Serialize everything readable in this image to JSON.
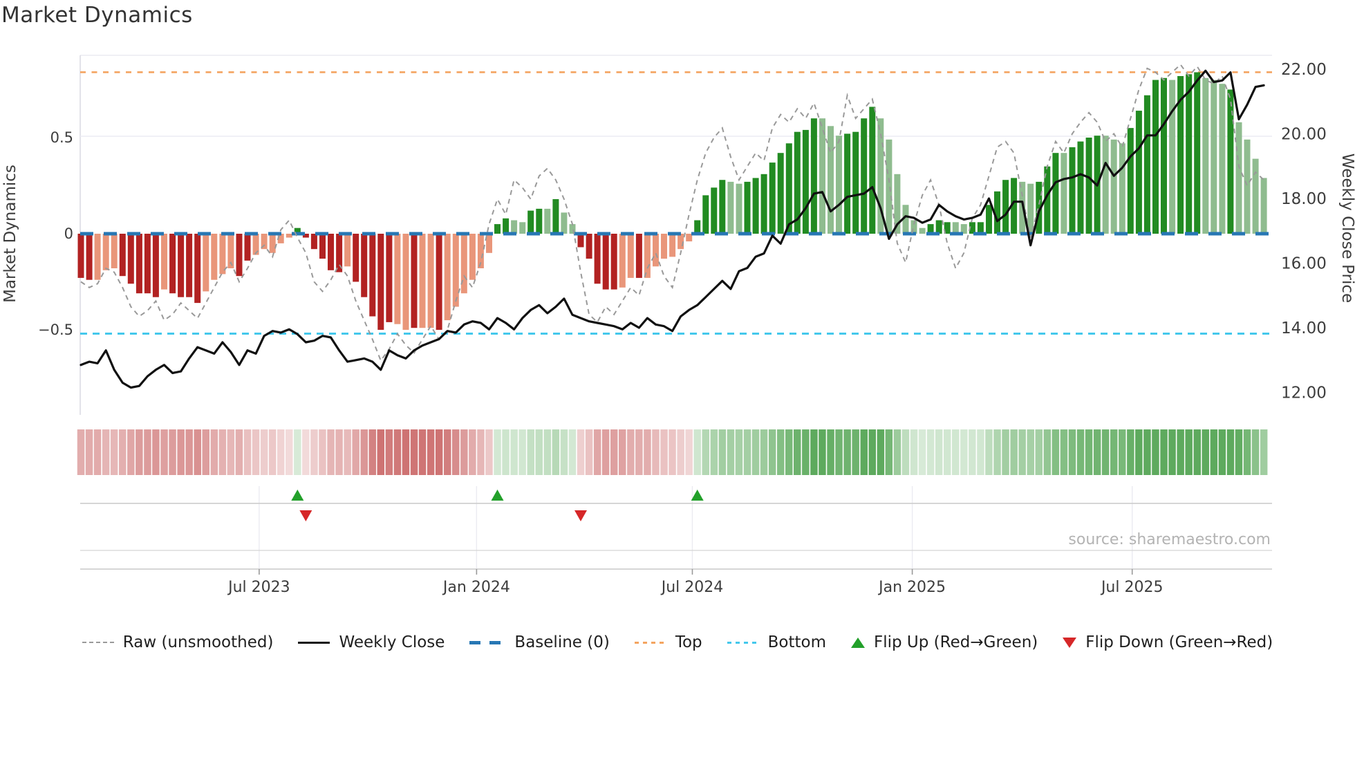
{
  "title": "Market Dynamics",
  "source": "source: sharemaestro.com",
  "axes": {
    "left_title": "Market Dynamics",
    "right_title": "Weekly Close Price",
    "left_ticks": [
      {
        "value": 0.5,
        "label": "0.5"
      },
      {
        "value": 0,
        "label": "0"
      },
      {
        "value": -0.5,
        "label": "−0.5"
      }
    ],
    "right_ticks": [
      {
        "value": 22,
        "label": "22.00"
      },
      {
        "value": 20,
        "label": "20.00"
      },
      {
        "value": 18,
        "label": "18.00"
      },
      {
        "value": 16,
        "label": "16.00"
      },
      {
        "value": 14,
        "label": "14.00"
      },
      {
        "value": 12,
        "label": "12.00"
      }
    ],
    "x_ticks": [
      {
        "label": "Jul 2023",
        "week": 21.4
      },
      {
        "label": "Jan 2024",
        "week": 47.5
      },
      {
        "label": "Jul 2024",
        "week": 73.4
      },
      {
        "label": "Jan 2025",
        "week": 99.8
      },
      {
        "label": "Jul 2025",
        "week": 126.2
      }
    ]
  },
  "legend": [
    {
      "label": "Raw (unsmoothed)"
    },
    {
      "label": "Weekly Close"
    },
    {
      "label": "Baseline (0)"
    },
    {
      "label": "Top"
    },
    {
      "label": "Bottom"
    },
    {
      "label": "Flip Up (Red→Green)"
    },
    {
      "label": "Flip Down (Green→Red)"
    }
  ],
  "colors": {
    "bar_dark_red": "#B22222",
    "bar_light_red": "#E9967A",
    "bar_dark_green": "#228B22",
    "bar_light_green": "#8FBC8F",
    "baseline": "#2777b4",
    "top_line": "#F4A460",
    "bottom_line": "#44C8EC",
    "raw_line": "#999999",
    "close_line": "#111111",
    "flip_up": "#22A02A",
    "flip_down": "#D62728",
    "grid": "#ECECF4",
    "axis_text": "#3D3D3D",
    "panel_line": "#C9C9C9"
  },
  "chart_data": {
    "type": "bar",
    "subtype": "weekly oscillator bars + dual-axis lines + heatmap strip + flip markers",
    "weeks": 143,
    "title": "Market Dynamics",
    "ylabel_left": "Market Dynamics",
    "ylabel_right": "Weekly Close Price",
    "ylim_left": [
      -0.94,
      0.93
    ],
    "ylim_right": [
      11.3,
      22.4
    ],
    "baseline": 0,
    "top_threshold": 0.84,
    "bottom_threshold": -0.52,
    "grid": "horizontal, light",
    "legend_position": "bottom center",
    "series": [
      {
        "name": "Oscillator (bars, left axis)",
        "type": "bar",
        "values": [
          -0.23,
          -0.24,
          -0.24,
          -0.19,
          -0.18,
          -0.22,
          -0.26,
          -0.31,
          -0.31,
          -0.33,
          -0.29,
          -0.31,
          -0.33,
          -0.33,
          -0.36,
          -0.3,
          -0.24,
          -0.21,
          -0.18,
          -0.22,
          -0.14,
          -0.11,
          -0.08,
          -0.1,
          -0.05,
          -0.02,
          0.03,
          -0.02,
          -0.08,
          -0.13,
          -0.19,
          -0.2,
          -0.17,
          -0.25,
          -0.33,
          -0.43,
          -0.5,
          -0.46,
          -0.47,
          -0.5,
          -0.49,
          -0.49,
          -0.49,
          -0.5,
          -0.45,
          -0.38,
          -0.31,
          -0.24,
          -0.18,
          -0.1,
          0.05,
          0.08,
          0.07,
          0.06,
          0.12,
          0.13,
          0.13,
          0.18,
          0.11,
          0.05,
          -0.07,
          -0.13,
          -0.26,
          -0.29,
          -0.29,
          -0.28,
          -0.23,
          -0.23,
          -0.23,
          -0.17,
          -0.13,
          -0.12,
          -0.08,
          -0.04,
          0.07,
          0.2,
          0.24,
          0.28,
          0.27,
          0.26,
          0.27,
          0.29,
          0.31,
          0.37,
          0.42,
          0.47,
          0.53,
          0.54,
          0.6,
          0.6,
          0.56,
          0.51,
          0.52,
          0.53,
          0.6,
          0.66,
          0.6,
          0.49,
          0.31,
          0.15,
          0.07,
          0.03,
          0.05,
          0.07,
          0.06,
          0.06,
          0.05,
          0.06,
          0.06,
          0.15,
          0.22,
          0.28,
          0.29,
          0.27,
          0.26,
          0.27,
          0.35,
          0.42,
          0.42,
          0.45,
          0.48,
          0.5,
          0.51,
          0.51,
          0.49,
          0.47,
          0.55,
          0.64,
          0.72,
          0.8,
          0.81,
          0.8,
          0.82,
          0.83,
          0.84,
          0.81,
          0.8,
          0.78,
          0.75,
          0.58,
          0.49,
          0.39,
          0.29
        ],
        "shade_pattern": "ddllldddddlddddllllddlllllddddddldddddlldlldllllllddllddldlldddddlldllllllddddlldddddddddlllddddlllllldddllddddddlldddlddddllldddddldddllldllll",
        "shade_legend": {
          "d": "dark (saturated)",
          "l": "light (muted)"
        }
      },
      {
        "name": "Raw (unsmoothed)",
        "type": "line",
        "axis": "left",
        "style": "gray dashed",
        "values": [
          -0.25,
          -0.28,
          -0.26,
          -0.18,
          -0.2,
          -0.28,
          -0.38,
          -0.43,
          -0.4,
          -0.35,
          -0.45,
          -0.42,
          -0.36,
          -0.4,
          -0.44,
          -0.36,
          -0.28,
          -0.2,
          -0.15,
          -0.25,
          -0.18,
          -0.1,
          -0.06,
          -0.12,
          0.02,
          0.07,
          -0.02,
          -0.1,
          -0.25,
          -0.3,
          -0.24,
          -0.16,
          -0.22,
          -0.35,
          -0.45,
          -0.55,
          -0.66,
          -0.6,
          -0.52,
          -0.58,
          -0.62,
          -0.55,
          -0.48,
          -0.55,
          -0.5,
          -0.35,
          -0.22,
          -0.28,
          -0.15,
          0.05,
          0.18,
          0.1,
          0.28,
          0.24,
          0.18,
          0.3,
          0.34,
          0.28,
          0.18,
          0.05,
          -0.2,
          -0.42,
          -0.46,
          -0.38,
          -0.42,
          -0.35,
          -0.28,
          -0.32,
          -0.18,
          -0.1,
          -0.22,
          -0.28,
          -0.1,
          0.1,
          0.28,
          0.42,
          0.5,
          0.55,
          0.4,
          0.28,
          0.35,
          0.42,
          0.38,
          0.55,
          0.62,
          0.58,
          0.65,
          0.6,
          0.68,
          0.55,
          0.42,
          0.48,
          0.72,
          0.6,
          0.65,
          0.7,
          0.52,
          0.28,
          -0.05,
          -0.15,
          0.05,
          0.2,
          0.28,
          0.15,
          -0.05,
          -0.18,
          -0.1,
          0.08,
          0.15,
          0.3,
          0.45,
          0.48,
          0.42,
          0.2,
          -0.02,
          0.15,
          0.35,
          0.48,
          0.42,
          0.52,
          0.58,
          0.63,
          0.58,
          0.48,
          0.52,
          0.45,
          0.6,
          0.75,
          0.86,
          0.84,
          0.8,
          0.84,
          0.88,
          0.82,
          0.87,
          0.8,
          0.78,
          0.82,
          0.7,
          0.35,
          0.25,
          0.32,
          0.28
        ]
      },
      {
        "name": "Weekly Close",
        "type": "line",
        "axis": "right",
        "style": "black solid",
        "values": [
          12.85,
          12.95,
          12.9,
          13.3,
          12.7,
          12.3,
          12.15,
          12.2,
          12.5,
          12.7,
          12.85,
          12.6,
          12.65,
          13.05,
          13.4,
          13.3,
          13.2,
          13.55,
          13.25,
          12.85,
          13.3,
          13.2,
          13.75,
          13.9,
          13.85,
          13.95,
          13.8,
          13.55,
          13.6,
          13.75,
          13.7,
          13.3,
          12.95,
          13.0,
          13.05,
          12.95,
          12.7,
          13.3,
          13.15,
          13.05,
          13.3,
          13.45,
          13.55,
          13.65,
          13.9,
          13.85,
          14.1,
          14.2,
          14.15,
          13.95,
          14.3,
          14.15,
          13.95,
          14.3,
          14.55,
          14.7,
          14.45,
          14.65,
          14.9,
          14.4,
          14.3,
          14.2,
          14.15,
          14.1,
          14.05,
          13.95,
          14.15,
          14.0,
          14.3,
          14.1,
          14.05,
          13.9,
          14.35,
          14.55,
          14.7,
          14.95,
          15.2,
          15.45,
          15.2,
          15.75,
          15.85,
          16.2,
          16.3,
          16.85,
          16.6,
          17.2,
          17.35,
          17.7,
          18.15,
          18.2,
          17.6,
          17.8,
          18.05,
          18.1,
          18.15,
          18.35,
          17.7,
          16.75,
          17.2,
          17.45,
          17.4,
          17.25,
          17.35,
          17.8,
          17.6,
          17.45,
          17.35,
          17.4,
          17.5,
          18.0,
          17.3,
          17.5,
          17.9,
          17.9,
          16.55,
          17.6,
          18.1,
          18.5,
          18.6,
          18.65,
          18.75,
          18.65,
          18.4,
          19.1,
          18.7,
          18.95,
          19.3,
          19.55,
          19.95,
          19.95,
          20.3,
          20.7,
          21.05,
          21.3,
          21.65,
          21.95,
          21.6,
          21.65,
          21.9,
          20.45,
          20.9,
          21.45,
          21.5
        ]
      }
    ],
    "heatmap_strip": "mirrors oscillator sign/intensity in muted red-green cells, one per week",
    "flips": [
      {
        "type": "up",
        "week": 26
      },
      {
        "type": "down",
        "week": 27
      },
      {
        "type": "up",
        "week": 50
      },
      {
        "type": "down",
        "week": 60
      },
      {
        "type": "up",
        "week": 74
      }
    ]
  }
}
